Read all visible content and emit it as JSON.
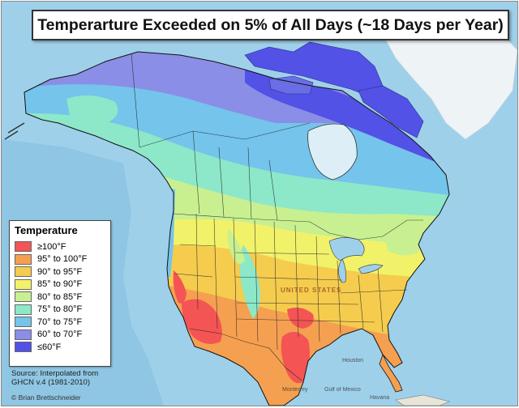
{
  "title": "Temperarture Exceeded on 5% of All Days (~18 Days per Year)",
  "legend": {
    "title": "Temperature",
    "items": [
      {
        "label": "≥100°F",
        "color": "#f45454"
      },
      {
        "label": "95° to 100°F",
        "color": "#f5a050"
      },
      {
        "label": "90° to 95°F",
        "color": "#f5cc4e"
      },
      {
        "label": "85° to 90°F",
        "color": "#f2f26a"
      },
      {
        "label": "80° to 85°F",
        "color": "#c8f090"
      },
      {
        "label": "75° to 80°F",
        "color": "#8ce8c8"
      },
      {
        "label": "70° to 75°F",
        "color": "#74c4ec"
      },
      {
        "label": "60° to 70°F",
        "color": "#8a8ee6"
      },
      {
        "label": "≤60°F",
        "color": "#5252e6"
      }
    ]
  },
  "source": {
    "line1": "Source: Interpolated from",
    "line2": "GHCN v.4 (1981-2010)"
  },
  "credit": "© Brian Brettschneider",
  "places": {
    "united_states": "UNITED STATES",
    "houston": "Houston",
    "monterrey": "Monterrey",
    "havana": "Havana",
    "gulf_of_mexico": "Gulf of Mexico"
  },
  "colors": {
    "ocean": "#9fd0ea",
    "land_bg": "#e9e4d8"
  }
}
